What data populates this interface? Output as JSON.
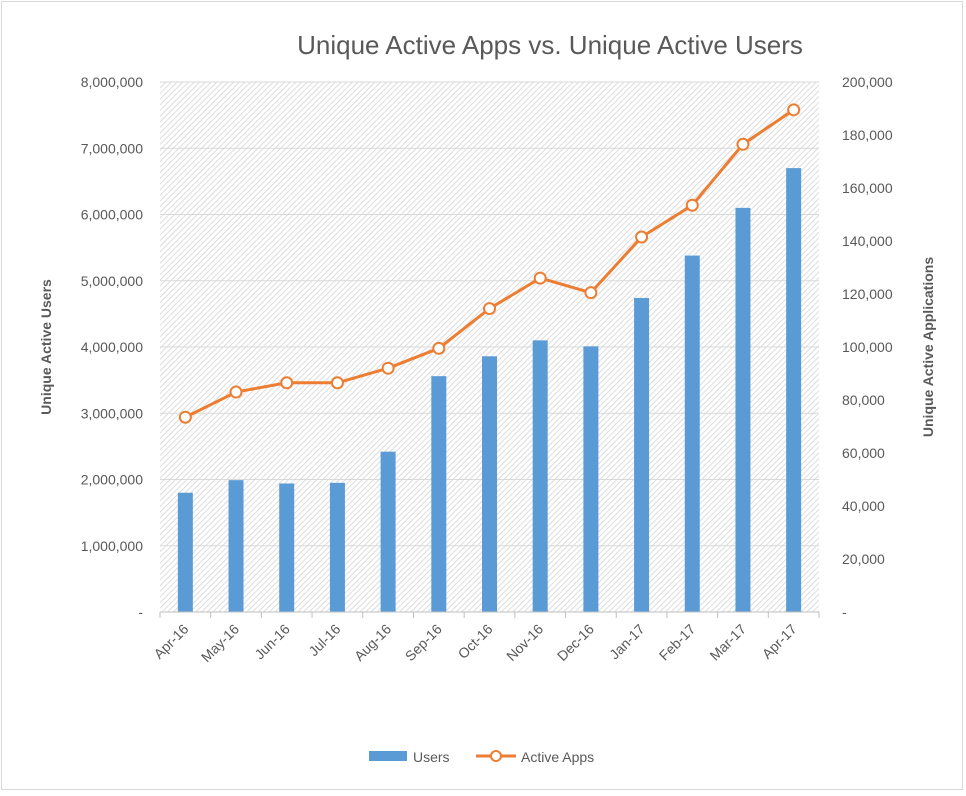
{
  "chart_data": {
    "type": "bar",
    "title": "Unique Active Apps vs. Unique Active Users",
    "categories": [
      "Apr-16",
      "May-16",
      "Jun-16",
      "Jul-16",
      "Aug-16",
      "Sep-16",
      "Oct-16",
      "Nov-16",
      "Dec-16",
      "Jan-17",
      "Feb-17",
      "Mar-17",
      "Apr-17"
    ],
    "series": [
      {
        "name": "Users",
        "type": "bar",
        "axis": "left",
        "color": "#5b9bd5",
        "values": [
          1800000,
          1990000,
          1940000,
          1950000,
          2420000,
          3560000,
          3860000,
          4100000,
          4010000,
          4740000,
          5380000,
          6100000,
          6700000
        ]
      },
      {
        "name": "Active Apps",
        "type": "line",
        "axis": "right",
        "color": "#ed7d31",
        "values": [
          73500,
          83000,
          86500,
          86500,
          92000,
          99500,
          114500,
          126000,
          120500,
          141500,
          153500,
          176500,
          189500
        ]
      }
    ],
    "y_left": {
      "label": "Unique Active Users",
      "min": 0,
      "max": 8000000,
      "ticks": [
        "-",
        "1,000,000",
        "2,000,000",
        "3,000,000",
        "4,000,000",
        "5,000,000",
        "6,000,000",
        "7,000,000",
        "8,000,000"
      ]
    },
    "y_right": {
      "label": "Unique Active Applications",
      "min": 0,
      "max": 200000,
      "ticks": [
        "-",
        "20,000",
        "40,000",
        "60,000",
        "80,000",
        "100,000",
        "120,000",
        "140,000",
        "160,000",
        "180,000",
        "200,000"
      ]
    },
    "grid": true,
    "legend_position": "bottom"
  }
}
